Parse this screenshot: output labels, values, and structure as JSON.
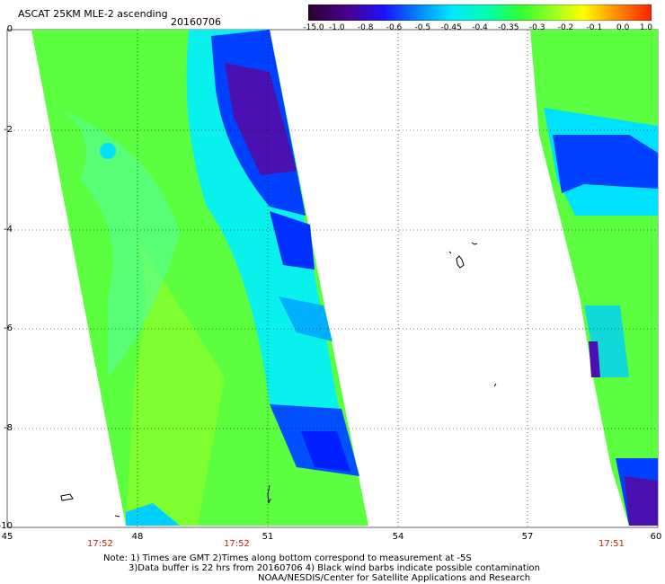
{
  "header": {
    "title": "ASCAT 25KM MLE-2 ascending",
    "date": "20160706"
  },
  "colorbar": {
    "labels": [
      "-15.0",
      "-1.0",
      "-0.8",
      "-0.6",
      "-0.5",
      "-0.45",
      "-0.4",
      "-0.35",
      "-0.3",
      "-0.2",
      "-0.1",
      "0.0",
      "1.0"
    ],
    "colors": [
      "#2a0030",
      "#3a0060",
      "#5a00b0",
      "#0020ff",
      "#0090ff",
      "#00e0ff",
      "#00ffb0",
      "#30ff30",
      "#a0ff20",
      "#ffff00",
      "#ff9000",
      "#ff3000",
      "#ff0000"
    ]
  },
  "map": {
    "lon_ticks": [
      "45",
      "48",
      "51",
      "54",
      "57",
      "60"
    ],
    "lat_ticks": [
      "0",
      "-2",
      "-4",
      "-6",
      "-8",
      "-10"
    ],
    "time_labels": [
      "17:52",
      "17:52",
      "17:51"
    ]
  },
  "notes": {
    "line1": "Note: 1) Times are GMT 2)Times along bottom correspond to measurement at -5S",
    "line2": "3)Data buffer is 22 hrs from 20160706 4) Black wind barbs indicate possible contamination",
    "line3": "NOAA/NESDIS/Center for Satellite Applications and Research"
  }
}
